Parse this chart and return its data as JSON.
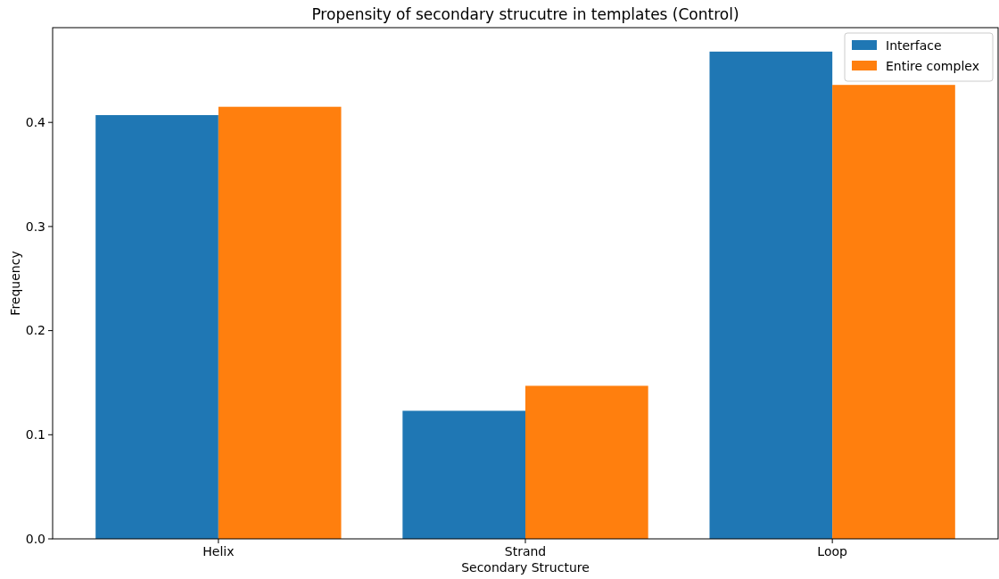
{
  "chart_data": {
    "type": "bar",
    "title": "Propensity of secondary strucutre in templates (Control)",
    "xlabel": "Secondary Structure",
    "ylabel": "Frequency",
    "categories": [
      "Helix",
      "Strand",
      "Loop"
    ],
    "series": [
      {
        "name": "Interface",
        "color": "#1f77b4",
        "values": [
          0.407,
          0.123,
          0.468
        ]
      },
      {
        "name": "Entire complex",
        "color": "#ff7f0e",
        "values": [
          0.415,
          0.147,
          0.436
        ]
      }
    ],
    "ylim": [
      0,
      0.491
    ],
    "yticks": [
      {
        "value": 0,
        "label": "0.0"
      },
      {
        "value": 0.1,
        "label": "0.1"
      },
      {
        "value": 0.2,
        "label": "0.2"
      },
      {
        "value": 0.3,
        "label": "0.3"
      },
      {
        "value": 0.4,
        "label": "0.4"
      }
    ],
    "grid": false,
    "legend": "top right"
  }
}
